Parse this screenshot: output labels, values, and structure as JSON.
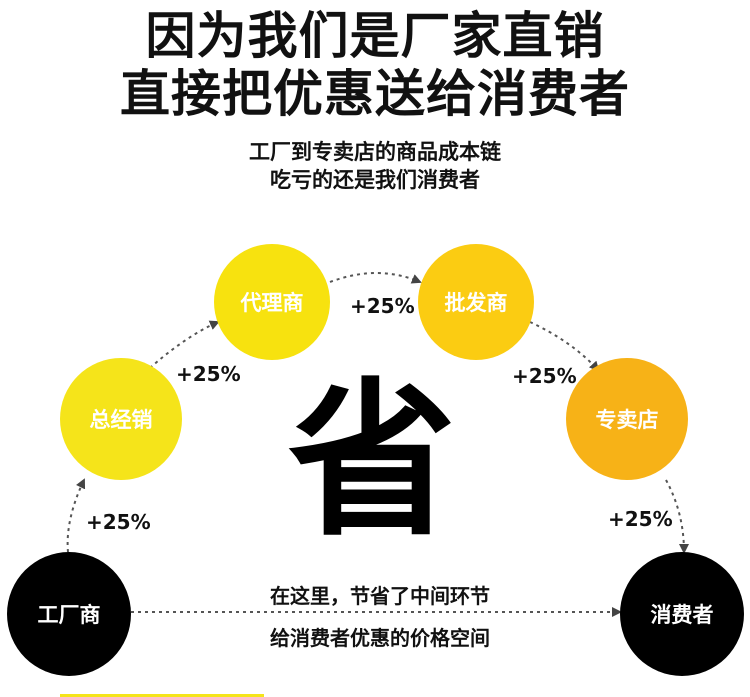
{
  "header": {
    "headline_line1": "因为我们是厂家直销",
    "headline_line2": "直接把优惠送给消费者",
    "subtitle_line1": "工厂到专卖店的商品成本链",
    "subtitle_line2": "吃亏的还是我们消费者"
  },
  "flow": {
    "nodes": {
      "factory": "工厂商",
      "total_distributor": "总经销",
      "agent": "代理商",
      "wholesaler": "批发商",
      "store": "专卖店",
      "consumer": "消费者"
    },
    "markup_label": "+25%",
    "center_character": "省",
    "savings_line1": "在这里，节省了中间环节",
    "savings_line2": "给消费者优惠的价格空间"
  },
  "colors": {
    "total_distributor": "#f5e41a",
    "agent": "#f7e20f",
    "wholesaler": "#fbcc12",
    "store": "#f7b217",
    "factory": "#000000",
    "consumer": "#000000",
    "arrow": "#555555"
  }
}
